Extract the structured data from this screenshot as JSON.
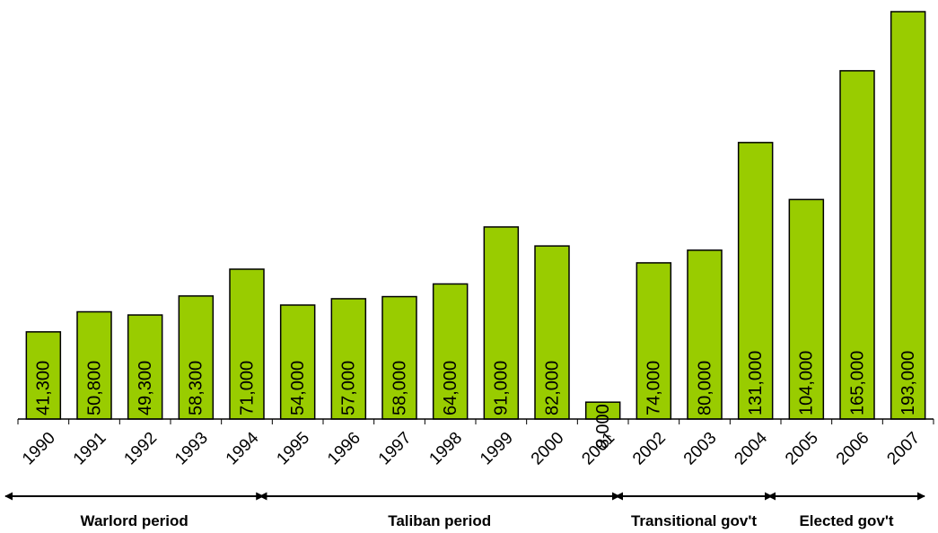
{
  "chart_data": {
    "type": "bar",
    "categories": [
      "1990",
      "1991",
      "1992",
      "1993",
      "1994",
      "1995",
      "1996",
      "1997",
      "1998",
      "1999",
      "2000",
      "2001",
      "2002",
      "2003",
      "2004",
      "2005",
      "2006",
      "2007"
    ],
    "values": [
      41300,
      50800,
      49300,
      58300,
      71000,
      54000,
      57000,
      58000,
      64000,
      91000,
      82000,
      8000,
      74000,
      80000,
      131000,
      104000,
      165000,
      193000
    ],
    "labels": [
      "41,300",
      "50,800",
      "49,300",
      "58,300",
      "71,000",
      "54,000",
      "57,000",
      "58,000",
      "64,000",
      "91,000",
      "82,000",
      "8,000",
      "74,000",
      "80,000",
      "131,000",
      "104,000",
      "165,000",
      "193,000"
    ],
    "ylim": [
      0,
      193000
    ],
    "bar_color": "#99CC00",
    "grid": false,
    "periods": [
      {
        "label": "Warlord period",
        "from": "1990",
        "to": "1994"
      },
      {
        "label": "Taliban period",
        "from": "1995",
        "to": "2001"
      },
      {
        "label": "Transitional gov't",
        "from": "2002",
        "to": "2004"
      },
      {
        "label": "Elected gov't",
        "from": "2005",
        "to": "2007"
      }
    ]
  }
}
